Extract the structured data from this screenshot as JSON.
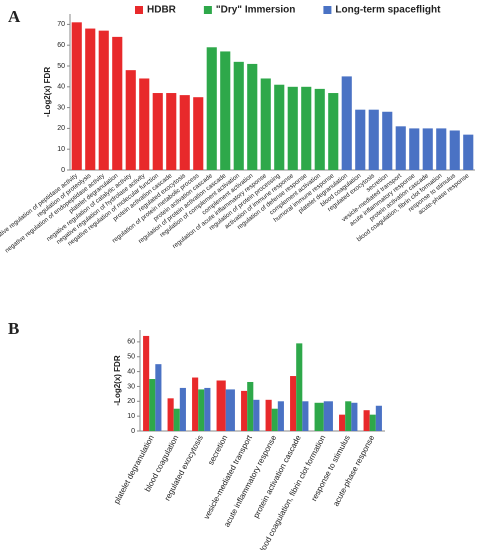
{
  "chart_data": [
    {
      "type": "bar",
      "panel": "A",
      "ylabel": "-Log2(x) FDR",
      "ylim": [
        0,
        75
      ],
      "yticks": [
        0,
        10,
        20,
        30,
        40,
        50,
        60,
        70
      ],
      "grid": false,
      "legend": "top",
      "categories": [
        "negative regulation of peptidase activity",
        "regulation of proteolysis",
        "negative regulation of endopeptidase activity",
        "platelet degranulation",
        "negative regulation of catalytic activity",
        "negative regulation of hydrolase activity",
        "negative regulation of molecular function",
        "protein activation cascade",
        "regulated exocytosis",
        "regulation of protein metabolic process",
        "protein activation cascade",
        "regulation of protein activation cascade",
        "regulation of complement activation",
        "complement activation",
        "regulation of acute inflammatory response",
        "regulation of protein processing",
        "activation of immune response",
        "regulation of defense response",
        "complement activation",
        "humoral immune response",
        "platelet degranulation",
        "blood coagulation",
        "regulated exocytosis",
        "secretion",
        "vesicle-mediated transport",
        "acute inflammatory response",
        "protein activation cascade",
        "blood coagulation, fibrin clot formation",
        "response to stimulus",
        "acute-phase response"
      ],
      "series": [
        {
          "name": "HDBR",
          "color": "#e8292b",
          "values": [
            71,
            68,
            67,
            64,
            48,
            44,
            37,
            37,
            36,
            35,
            null,
            null,
            null,
            null,
            null,
            null,
            null,
            null,
            null,
            null,
            null,
            null,
            null,
            null,
            null,
            null,
            null,
            null,
            null,
            null
          ]
        },
        {
          "name": "\"Dry\" Immersion",
          "color": "#2ea84a",
          "values": [
            null,
            null,
            null,
            null,
            null,
            null,
            null,
            null,
            null,
            null,
            59,
            57,
            52,
            51,
            44,
            41,
            40,
            40,
            39,
            37,
            null,
            null,
            null,
            null,
            null,
            null,
            null,
            null,
            null,
            null
          ]
        },
        {
          "name": "Long-term spaceflight",
          "color": "#4a72c4",
          "values": [
            null,
            null,
            null,
            null,
            null,
            null,
            null,
            null,
            null,
            null,
            null,
            null,
            null,
            null,
            null,
            null,
            null,
            null,
            null,
            null,
            45,
            29,
            29,
            28,
            21,
            20,
            20,
            20,
            19,
            17
          ]
        }
      ]
    },
    {
      "type": "bar",
      "panel": "B",
      "ylabel": "-Log2(x) FDR",
      "ylim": [
        0,
        68
      ],
      "yticks": [
        0,
        10,
        20,
        30,
        40,
        50,
        60
      ],
      "grid": false,
      "categories": [
        "platelet degranulation",
        "blood coagulation",
        "regulated exocytosis",
        "secretion",
        "vesicle-mediated transport",
        "acute inflammatory response",
        "protein activation cascade",
        "blood coagulation, fibrin clot formation",
        "response to stimulus",
        "acute-phase response"
      ],
      "series": [
        {
          "color": "#e8292b",
          "values": [
            64,
            22,
            36,
            34,
            27,
            21,
            37,
            null,
            11,
            14
          ]
        },
        {
          "color": "#2ea84a",
          "values": [
            35,
            15,
            28,
            null,
            33,
            15,
            59,
            19,
            20,
            11
          ]
        },
        {
          "color": "#4a72c4",
          "values": [
            45,
            29,
            29,
            28,
            21,
            20,
            20,
            20,
            19,
            17
          ]
        }
      ]
    }
  ]
}
